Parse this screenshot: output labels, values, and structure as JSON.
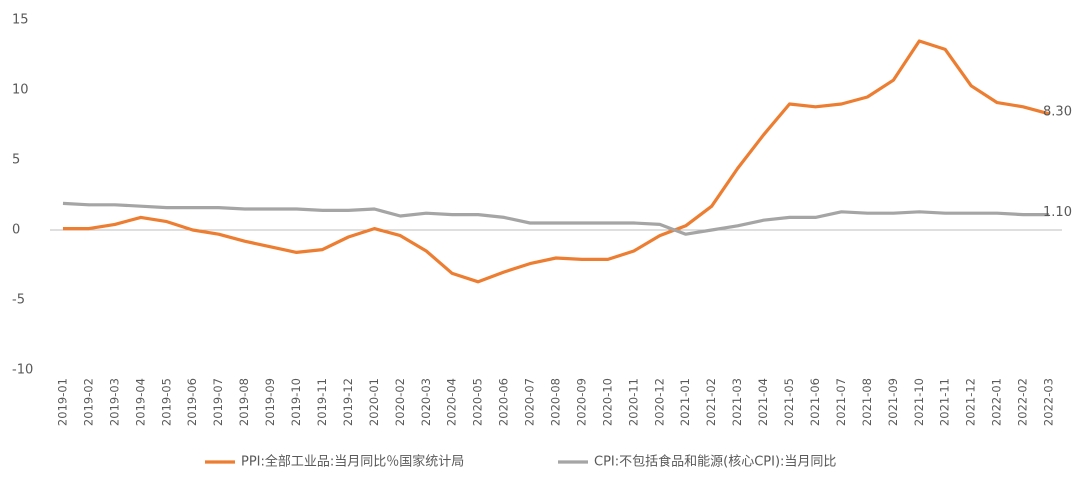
{
  "chart_data": {
    "type": "line",
    "categories": [
      "2019-01",
      "2019-02",
      "2019-03",
      "2019-04",
      "2019-05",
      "2019-06",
      "2019-07",
      "2019-08",
      "2019-09",
      "2019-10",
      "2019-11",
      "2019-12",
      "2020-01",
      "2020-02",
      "2020-03",
      "2020-04",
      "2020-05",
      "2020-06",
      "2020-07",
      "2020-08",
      "2020-09",
      "2020-10",
      "2020-11",
      "2020-12",
      "2021-01",
      "2021-02",
      "2021-03",
      "2021-04",
      "2021-05",
      "2021-06",
      "2021-07",
      "2021-08",
      "2021-09",
      "2021-10",
      "2021-11",
      "2021-12",
      "2022-01",
      "2022-02",
      "2022-03"
    ],
    "series": [
      {
        "name": "PPI:全部工业品:当月同比％国家统计局",
        "color": "#ed7d31",
        "values": [
          0.1,
          0.1,
          0.4,
          0.9,
          0.6,
          0.0,
          -0.3,
          -0.8,
          -1.2,
          -1.6,
          -1.4,
          -0.5,
          0.1,
          -0.4,
          -1.5,
          -3.1,
          -3.7,
          -3.0,
          -2.4,
          -2.0,
          -2.1,
          -2.1,
          -1.5,
          -0.4,
          0.3,
          1.7,
          4.4,
          6.8,
          9.0,
          8.8,
          9.0,
          9.5,
          10.7,
          13.5,
          12.9,
          10.3,
          9.1,
          8.8,
          8.3
        ],
        "value_labels": [
          null,
          null,
          null,
          null,
          null,
          null,
          null,
          null,
          null,
          null,
          null,
          null,
          null,
          null,
          null,
          null,
          null,
          null,
          null,
          null,
          null,
          null,
          null,
          null,
          null,
          null,
          null,
          null,
          null,
          null,
          null,
          null,
          null,
          null,
          null,
          null,
          null,
          null,
          "8.30"
        ]
      },
      {
        "name": "CPI:不包括食品和能源(核心CPI):当月同比",
        "color": "#a5a5a5",
        "values": [
          1.9,
          1.8,
          1.8,
          1.7,
          1.6,
          1.6,
          1.6,
          1.5,
          1.5,
          1.5,
          1.4,
          1.4,
          1.5,
          1.0,
          1.2,
          1.1,
          1.1,
          0.9,
          0.5,
          0.5,
          0.5,
          0.5,
          0.5,
          0.4,
          -0.3,
          0.0,
          0.3,
          0.7,
          0.9,
          0.9,
          1.3,
          1.2,
          1.2,
          1.3,
          1.2,
          1.2,
          1.2,
          1.1,
          1.1
        ],
        "value_labels": [
          null,
          null,
          null,
          null,
          null,
          null,
          null,
          null,
          null,
          null,
          null,
          null,
          null,
          null,
          null,
          null,
          null,
          null,
          null,
          null,
          null,
          null,
          null,
          null,
          null,
          null,
          null,
          null,
          null,
          null,
          null,
          null,
          null,
          null,
          null,
          null,
          null,
          null,
          "1.10"
        ]
      }
    ],
    "ylim": [
      -10,
      15
    ],
    "yticks": [
      -10,
      -5,
      0,
      5,
      10,
      15
    ],
    "grid": false,
    "legend": "bottom"
  }
}
